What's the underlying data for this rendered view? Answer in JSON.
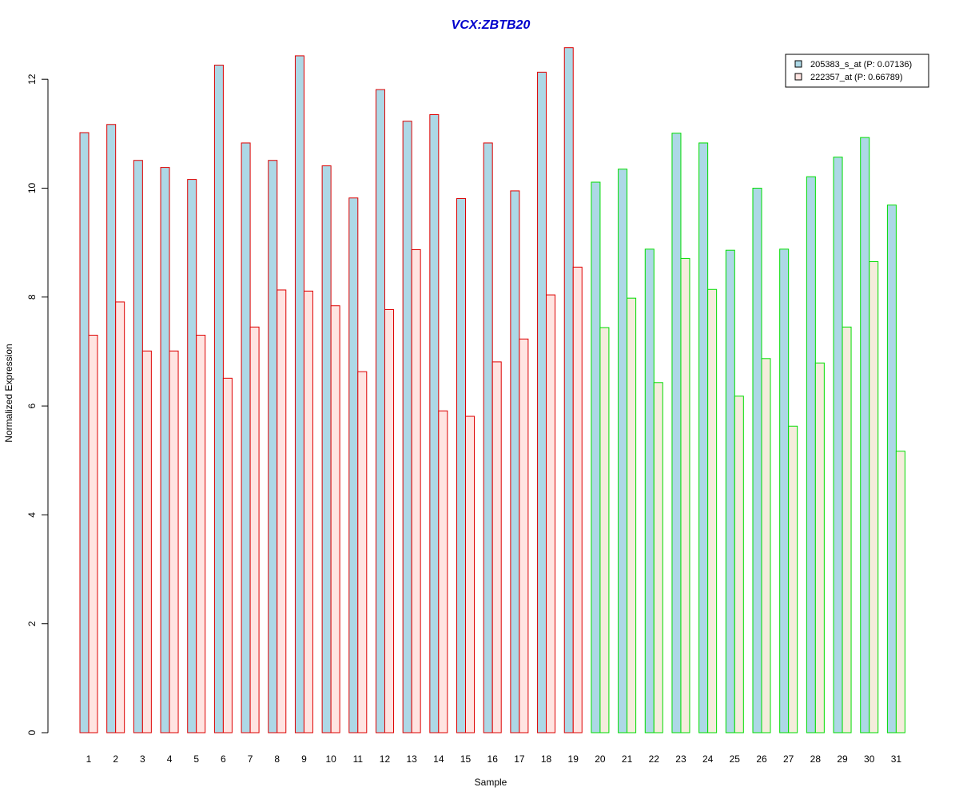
{
  "chart_data": {
    "type": "bar",
    "title": "VCX:ZBTB20",
    "xlabel": "Sample",
    "ylabel": "Normalized Expression",
    "ylim": [
      0,
      12.6
    ],
    "yticks": [
      0,
      2,
      4,
      6,
      8,
      10,
      12
    ],
    "categories": [
      "1",
      "2",
      "3",
      "4",
      "5",
      "6",
      "7",
      "8",
      "9",
      "10",
      "11",
      "12",
      "13",
      "14",
      "15",
      "16",
      "17",
      "18",
      "19",
      "20",
      "21",
      "22",
      "23",
      "24",
      "25",
      "26",
      "27",
      "28",
      "29",
      "30",
      "31"
    ],
    "group_split_after": 19,
    "series": [
      {
        "name": "205383_s_at (P: 0.07136)",
        "values": [
          11.02,
          11.17,
          10.51,
          10.38,
          10.16,
          12.26,
          10.83,
          10.51,
          12.43,
          10.41,
          9.82,
          11.81,
          11.23,
          11.35,
          9.81,
          10.83,
          9.95,
          12.13,
          12.58,
          10.11,
          10.35,
          8.88,
          11.01,
          10.83,
          8.86,
          10.0,
          8.88,
          10.21,
          10.57,
          10.93,
          9.69
        ]
      },
      {
        "name": "222357_at (P: 0.66789)",
        "values": [
          7.3,
          7.91,
          7.01,
          7.01,
          7.3,
          6.51,
          7.45,
          8.13,
          8.11,
          7.84,
          6.63,
          7.77,
          8.87,
          5.91,
          5.81,
          6.81,
          7.23,
          8.04,
          8.55,
          7.44,
          7.98,
          6.43,
          8.71,
          8.14,
          6.18,
          6.87,
          5.63,
          6.79,
          7.45,
          8.65,
          5.17
        ]
      }
    ],
    "colors": {
      "series1_fill": "#add8e6",
      "series2_fill_group1": "#ffe4e1",
      "series2_fill_group2": "#f5ecdc",
      "border_group1": "#dd0000",
      "border_group2": "#00dd00",
      "title": "#0000cc"
    },
    "grid": false,
    "legend_position": "top-right"
  }
}
